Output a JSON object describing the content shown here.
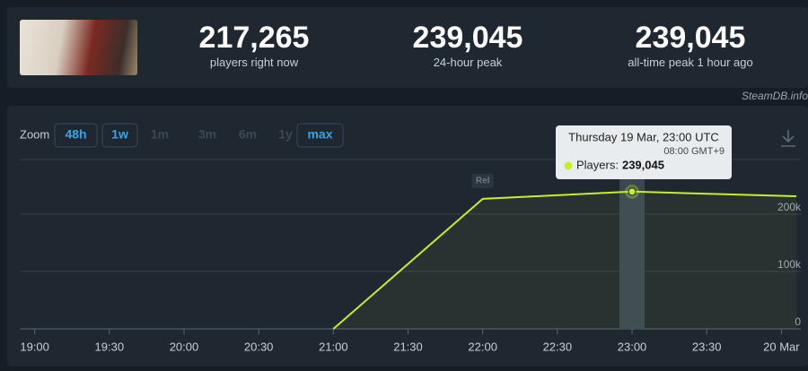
{
  "header": {
    "stats": [
      {
        "value": "217,265",
        "label": "players right now"
      },
      {
        "value": "239,045",
        "label": "24-hour peak"
      },
      {
        "value": "239,045",
        "label": "all-time peak 1 hour ago"
      }
    ],
    "watermark": "SteamDB.info"
  },
  "zoom": {
    "label": "Zoom",
    "buttons": [
      {
        "label": "48h",
        "enabled": true
      },
      {
        "label": "1w",
        "enabled": true
      },
      {
        "label": "1m",
        "enabled": false
      },
      {
        "label": "3m",
        "enabled": false
      },
      {
        "label": "6m",
        "enabled": false
      },
      {
        "label": "1y",
        "enabled": false
      },
      {
        "label": "max",
        "enabled": true
      }
    ]
  },
  "chart_data": {
    "type": "line",
    "x": [
      21,
      22,
      23,
      24.1
    ],
    "series": [
      {
        "color": "#c5ef2c",
        "values": [
          0,
          226500,
          239045,
          231000
        ]
      }
    ],
    "xlim": [
      18.9,
      24.13
    ],
    "xticks": [
      {
        "value": 19,
        "label": "19:00"
      },
      {
        "value": 19.5,
        "label": "19:30"
      },
      {
        "value": 20,
        "label": "20:00"
      },
      {
        "value": 20.5,
        "label": "20:30"
      },
      {
        "value": 21,
        "label": "21:00"
      },
      {
        "value": 21.5,
        "label": "21:30"
      },
      {
        "value": 22,
        "label": "22:00"
      },
      {
        "value": 22.5,
        "label": "22:30"
      },
      {
        "value": 23,
        "label": "23:00"
      },
      {
        "value": 23.5,
        "label": "23:30"
      },
      {
        "value": 24,
        "label": "20 Mar"
      }
    ],
    "ylim": [
      0,
      295000
    ],
    "yticks": [
      0,
      {
        "value": 100000,
        "label": "100k"
      },
      {
        "value": 200000,
        "label": "200k"
      }
    ],
    "grid": true,
    "annotations": [
      {
        "x": 22,
        "label": "Rel"
      }
    ],
    "tooltip": {
      "index": 2,
      "title": "Thursday 19 Mar, 23:00 UTC",
      "subtitle": "08:00 GMT+9",
      "label": "Players:",
      "value": "239,045"
    }
  }
}
